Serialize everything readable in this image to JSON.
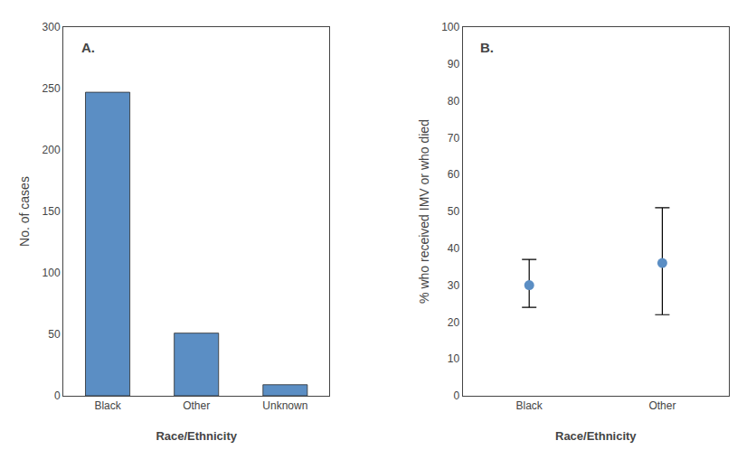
{
  "chart_data": [
    {
      "type": "bar",
      "categories": [
        "Black",
        "Other",
        "Unknown"
      ],
      "values": [
        247,
        51,
        9
      ],
      "color": "#5b8ec4",
      "ylabel": "No. of cases",
      "xlabel": "Race/Ethnicity",
      "ylim": [
        0,
        300
      ],
      "yticks": [
        0,
        50,
        100,
        150,
        200,
        250,
        300
      ],
      "annotations": [
        "A."
      ],
      "grid": false
    },
    {
      "type": "scatter",
      "categories": [
        "Black",
        "Other"
      ],
      "values": [
        30,
        36
      ],
      "error_low": [
        6,
        14
      ],
      "error_high": [
        7,
        15
      ],
      "color": "#5b8ec4",
      "ylabel": "% who received IMV or who died",
      "xlabel": "Race/Ethnicity",
      "ylim": [
        0,
        100
      ],
      "yticks": [
        0,
        10,
        20,
        30,
        40,
        50,
        60,
        70,
        80,
        90,
        100
      ],
      "annotations": [
        "B."
      ],
      "grid": false
    }
  ]
}
